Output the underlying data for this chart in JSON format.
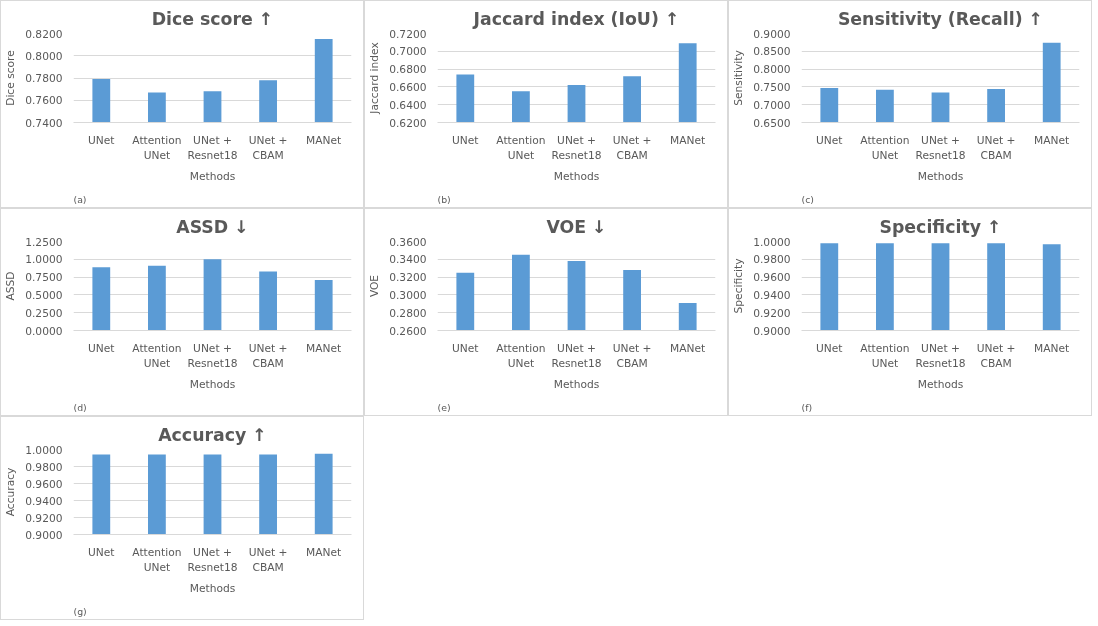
{
  "chart_data": [
    {
      "type": "bar",
      "title": "Dice score ↑",
      "xlabel": "Methods",
      "ylabel": "Dice score",
      "categories": [
        "UNet",
        "Attention UNet",
        "UNet + Resnet18",
        "UNet + CBAM",
        "MANet"
      ],
      "values": [
        0.779,
        0.767,
        0.768,
        0.778,
        0.815
      ],
      "color": "#5b9bd5",
      "ylim": [
        0.74,
        0.82
      ],
      "yticks": [
        {
          "value": 0.74,
          "label": "0.7400"
        },
        {
          "value": 0.76,
          "label": "0.7600"
        },
        {
          "value": 0.78,
          "label": "0.7800"
        },
        {
          "value": 0.8,
          "label": "0.8000"
        },
        {
          "value": 0.82,
          "label": "0.8200"
        }
      ],
      "grid": "y",
      "annotations": [
        "(a)"
      ]
    },
    {
      "type": "bar",
      "title": "Jaccard index (IoU) ↑",
      "xlabel": "Methods",
      "ylabel": "Jaccard index",
      "categories": [
        "UNet",
        "Attention UNet",
        "UNet + Resnet18",
        "UNet + CBAM",
        "MANet"
      ],
      "values": [
        0.674,
        0.655,
        0.662,
        0.672,
        0.709
      ],
      "color": "#5b9bd5",
      "ylim": [
        0.62,
        0.72
      ],
      "yticks": [
        {
          "value": 0.62,
          "label": "0.6200"
        },
        {
          "value": 0.64,
          "label": "0.6400"
        },
        {
          "value": 0.66,
          "label": "0.6600"
        },
        {
          "value": 0.68,
          "label": "0.6800"
        },
        {
          "value": 0.7,
          "label": "0.7000"
        },
        {
          "value": 0.72,
          "label": "0.7200"
        }
      ],
      "grid": "y",
      "annotations": [
        "(b)"
      ]
    },
    {
      "type": "bar",
      "title": "Sensitivity (Recall) ↑",
      "xlabel": "Methods",
      "ylabel": "Sensitivity",
      "categories": [
        "UNet",
        "Attention UNet",
        "UNet + Resnet18",
        "UNet + CBAM",
        "MANet"
      ],
      "values": [
        0.747,
        0.742,
        0.734,
        0.744,
        0.874
      ],
      "color": "#5b9bd5",
      "ylim": [
        0.65,
        0.9
      ],
      "yticks": [
        {
          "value": 0.65,
          "label": "0.6500"
        },
        {
          "value": 0.7,
          "label": "0.7000"
        },
        {
          "value": 0.75,
          "label": "0.7500"
        },
        {
          "value": 0.8,
          "label": "0.8000"
        },
        {
          "value": 0.85,
          "label": "0.8500"
        },
        {
          "value": 0.9,
          "label": "0.9000"
        }
      ],
      "grid": "y",
      "annotations": [
        "(c)"
      ]
    },
    {
      "type": "bar",
      "title": "ASSD ↓",
      "xlabel": "Methods",
      "ylabel": "ASSD",
      "categories": [
        "UNet",
        "Attention UNet",
        "UNet + Resnet18",
        "UNet + CBAM",
        "MANet"
      ],
      "values": [
        0.89,
        0.91,
        1.0,
        0.83,
        0.71
      ],
      "color": "#5b9bd5",
      "ylim": [
        0,
        1.25
      ],
      "yticks": [
        {
          "value": 0,
          "label": "0.0000"
        },
        {
          "value": 0.25,
          "label": "0.2500"
        },
        {
          "value": 0.5,
          "label": "0.5000"
        },
        {
          "value": 0.75,
          "label": "0.7500"
        },
        {
          "value": 1.0,
          "label": "1.0000"
        },
        {
          "value": 1.25,
          "label": "1.2500"
        }
      ],
      "grid": "y",
      "annotations": [
        "(d)"
      ]
    },
    {
      "type": "bar",
      "title": "VOE ↓",
      "xlabel": "Methods",
      "ylabel": "VOE",
      "categories": [
        "UNet",
        "Attention UNet",
        "UNet + Resnet18",
        "UNet + CBAM",
        "MANet"
      ],
      "values": [
        0.325,
        0.345,
        0.338,
        0.328,
        0.291
      ],
      "color": "#5b9bd5",
      "ylim": [
        0.26,
        0.36
      ],
      "yticks": [
        {
          "value": 0.26,
          "label": "0.2600"
        },
        {
          "value": 0.28,
          "label": "0.2800"
        },
        {
          "value": 0.3,
          "label": "0.3000"
        },
        {
          "value": 0.32,
          "label": "0.3200"
        },
        {
          "value": 0.34,
          "label": "0.3400"
        },
        {
          "value": 0.36,
          "label": "0.3600"
        }
      ],
      "grid": "y",
      "annotations": [
        "(e)"
      ]
    },
    {
      "type": "bar",
      "title": "Specificity ↑",
      "xlabel": "Methods",
      "ylabel": "Specificity",
      "categories": [
        "UNet",
        "Attention UNet",
        "UNet + Resnet18",
        "UNet + CBAM",
        "MANet"
      ],
      "values": [
        0.998,
        0.998,
        0.998,
        0.998,
        0.997
      ],
      "color": "#5b9bd5",
      "ylim": [
        0.9,
        1.0
      ],
      "yticks": [
        {
          "value": 0.9,
          "label": "0.9000"
        },
        {
          "value": 0.92,
          "label": "0.9200"
        },
        {
          "value": 0.94,
          "label": "0.9400"
        },
        {
          "value": 0.96,
          "label": "0.9600"
        },
        {
          "value": 0.98,
          "label": "0.9800"
        },
        {
          "value": 1.0,
          "label": "1.0000"
        }
      ],
      "grid": "y",
      "annotations": [
        "(f)"
      ]
    },
    {
      "type": "bar",
      "title": "Accuracy ↑",
      "xlabel": "Methods",
      "ylabel": "Accuracy",
      "categories": [
        "UNet",
        "Attention UNet",
        "UNet + Resnet18",
        "UNet + CBAM",
        "MANet"
      ],
      "values": [
        0.994,
        0.994,
        0.994,
        0.994,
        0.995
      ],
      "color": "#5b9bd5",
      "ylim": [
        0.9,
        1.0
      ],
      "yticks": [
        {
          "value": 0.9,
          "label": "0.9000"
        },
        {
          "value": 0.92,
          "label": "0.9200"
        },
        {
          "value": 0.94,
          "label": "0.9400"
        },
        {
          "value": 0.96,
          "label": "0.9600"
        },
        {
          "value": 0.98,
          "label": "0.9800"
        },
        {
          "value": 1.0,
          "label": "1.0000"
        }
      ],
      "grid": "y",
      "annotations": [
        "(g)"
      ]
    }
  ]
}
